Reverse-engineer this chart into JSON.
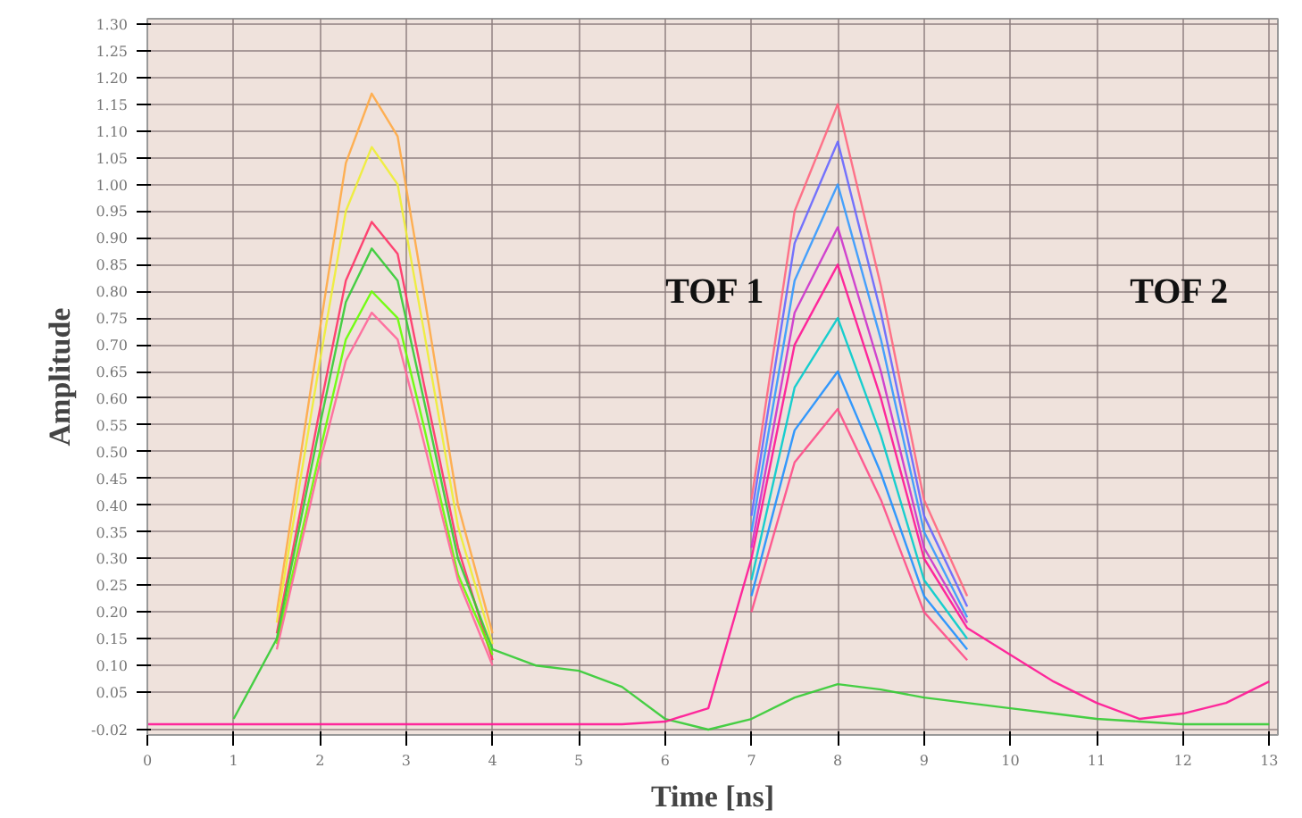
{
  "chart_data": {
    "type": "line",
    "xlabel": "Time [ns]",
    "ylabel": "Amplitude",
    "x": [
      0,
      0.5,
      1,
      1.5,
      2,
      2.3,
      2.6,
      2.9,
      3.2,
      3.6,
      4,
      4.5,
      5,
      5.5,
      6,
      6.5,
      7,
      7.5,
      8,
      8.5,
      9,
      9.5,
      10,
      10.5,
      11,
      11.5,
      12,
      12.5,
      13
    ],
    "series": [
      {
        "color": "#ffaa44",
        "values": [
          null,
          null,
          null,
          0.2,
          0.73,
          1.04,
          1.17,
          1.09,
          0.8,
          0.4,
          0.16,
          null,
          null,
          null,
          null,
          null,
          null,
          null,
          null,
          null,
          null,
          null,
          null,
          null,
          null,
          null,
          null,
          null,
          null
        ]
      },
      {
        "color": "#eeee33",
        "values": [
          null,
          null,
          null,
          0.18,
          0.67,
          0.95,
          1.07,
          1.0,
          0.73,
          0.36,
          0.14,
          null,
          null,
          null,
          null,
          null,
          null,
          null,
          null,
          null,
          null,
          null,
          null,
          null,
          null,
          null,
          null,
          null,
          null
        ]
      },
      {
        "color": "#ff3366",
        "values": [
          null,
          null,
          null,
          0.16,
          0.58,
          0.82,
          0.93,
          0.87,
          0.63,
          0.32,
          0.11,
          null,
          null,
          null,
          null,
          null,
          null,
          null,
          null,
          null,
          null,
          null,
          null,
          null,
          null,
          null,
          null,
          null,
          null
        ]
      },
      {
        "color": "#66ff00",
        "values": [
          null,
          null,
          null,
          0.14,
          0.5,
          0.71,
          0.8,
          0.75,
          0.55,
          0.27,
          0.12,
          null,
          null,
          null,
          null,
          null,
          null,
          null,
          null,
          null,
          null,
          null,
          null,
          null,
          null,
          null,
          null,
          null,
          null
        ]
      },
      {
        "color": "#ff6699",
        "values": [
          null,
          null,
          null,
          0.13,
          0.48,
          0.67,
          0.76,
          0.71,
          0.52,
          0.26,
          0.1,
          null,
          null,
          null,
          null,
          null,
          null,
          null,
          null,
          null,
          null,
          null,
          null,
          null,
          null,
          null,
          null,
          null,
          null
        ]
      },
      {
        "color": "#33cc33",
        "values": [
          null,
          null,
          0.0,
          0.15,
          0.55,
          0.78,
          0.88,
          0.82,
          0.6,
          0.3,
          0.13,
          0.1,
          0.09,
          0.06,
          0.0,
          -0.02,
          0.0,
          0.04,
          0.065,
          0.055,
          0.04,
          0.03,
          0.02,
          0.01,
          0.0,
          -0.005,
          -0.01,
          -0.01,
          -0.01
        ]
      },
      {
        "color": "#ff6680",
        "values": [
          null,
          null,
          null,
          null,
          null,
          null,
          null,
          null,
          null,
          null,
          null,
          null,
          null,
          null,
          null,
          null,
          0.41,
          0.95,
          1.15,
          0.81,
          0.41,
          0.23,
          null,
          null,
          null,
          null,
          null,
          null,
          null
        ]
      },
      {
        "color": "#6666ff",
        "values": [
          null,
          null,
          null,
          null,
          null,
          null,
          null,
          null,
          null,
          null,
          null,
          null,
          null,
          null,
          null,
          null,
          0.38,
          0.89,
          1.08,
          0.76,
          0.38,
          0.21,
          null,
          null,
          null,
          null,
          null,
          null,
          null
        ]
      },
      {
        "color": "#3399ff",
        "values": [
          null,
          null,
          null,
          null,
          null,
          null,
          null,
          null,
          null,
          null,
          null,
          null,
          null,
          null,
          null,
          null,
          0.35,
          0.82,
          1.0,
          0.71,
          0.35,
          0.19,
          null,
          null,
          null,
          null,
          null,
          null,
          null
        ]
      },
      {
        "color": "#cc33cc",
        "values": [
          null,
          null,
          null,
          null,
          null,
          null,
          null,
          null,
          null,
          null,
          null,
          null,
          null,
          null,
          null,
          null,
          0.32,
          0.76,
          0.92,
          0.65,
          0.32,
          0.18,
          null,
          null,
          null,
          null,
          null,
          null,
          null
        ]
      },
      {
        "color": "#00cccc",
        "values": [
          null,
          null,
          null,
          null,
          null,
          null,
          null,
          null,
          null,
          null,
          null,
          null,
          null,
          null,
          null,
          null,
          0.26,
          0.62,
          0.75,
          0.53,
          0.26,
          0.15,
          null,
          null,
          null,
          null,
          null,
          null,
          null
        ]
      },
      {
        "color": "#1e90ff",
        "values": [
          null,
          null,
          null,
          null,
          null,
          null,
          null,
          null,
          null,
          null,
          null,
          null,
          null,
          null,
          null,
          null,
          0.23,
          0.54,
          0.65,
          0.46,
          0.23,
          0.13,
          null,
          null,
          null,
          null,
          null,
          null,
          null
        ]
      },
      {
        "color": "#ff4d88",
        "values": [
          null,
          null,
          null,
          null,
          null,
          null,
          null,
          null,
          null,
          null,
          null,
          null,
          null,
          null,
          null,
          null,
          0.2,
          0.48,
          0.58,
          0.41,
          0.2,
          0.11,
          null,
          null,
          null,
          null,
          null,
          null,
          null
        ]
      },
      {
        "color": "#ff1493",
        "values": [
          -0.01,
          -0.01,
          -0.01,
          -0.01,
          -0.01,
          -0.01,
          -0.01,
          -0.01,
          -0.01,
          -0.01,
          -0.01,
          -0.01,
          -0.01,
          -0.01,
          -0.005,
          0.02,
          0.3,
          0.7,
          0.85,
          0.6,
          0.3,
          0.17,
          0.12,
          0.07,
          0.03,
          0.0,
          0.01,
          0.03,
          0.07
        ]
      }
    ],
    "annotations": [
      "TOF 1",
      "TOF 2"
    ],
    "xlim": [
      0,
      13.1
    ],
    "xticks": [
      0,
      1,
      2,
      3,
      4,
      5,
      6,
      7,
      8,
      9,
      10,
      11,
      12,
      13
    ],
    "ylim": [
      -0.03,
      1.31
    ],
    "yticks": [
      {
        "value": -0.02,
        "label": "-0.02"
      },
      {
        "value": 0.05,
        "label": "0.05"
      },
      {
        "value": 0.1,
        "label": "0.10"
      },
      {
        "value": 0.15,
        "label": "0.15"
      },
      {
        "value": 0.2,
        "label": "0.20"
      },
      {
        "value": 0.25,
        "label": "0.25"
      },
      {
        "value": 0.3,
        "label": "0.30"
      },
      {
        "value": 0.35,
        "label": "0.35"
      },
      {
        "value": 0.4,
        "label": "0.40"
      },
      {
        "value": 0.45,
        "label": "0.45"
      },
      {
        "value": 0.5,
        "label": "0.50"
      },
      {
        "value": 0.55,
        "label": "0.55"
      },
      {
        "value": 0.6,
        "label": "0.60"
      },
      {
        "value": 0.65,
        "label": "0.65"
      },
      {
        "value": 0.7,
        "label": "0.70"
      },
      {
        "value": 0.75,
        "label": "0.75"
      },
      {
        "value": 0.8,
        "label": "0.80"
      },
      {
        "value": 0.85,
        "label": "0.85"
      },
      {
        "value": 0.9,
        "label": "0.90"
      },
      {
        "value": 0.95,
        "label": "0.95"
      },
      {
        "value": 1.0,
        "label": "1.00"
      },
      {
        "value": 1.05,
        "label": "1.05"
      },
      {
        "value": 1.1,
        "label": "1.10"
      },
      {
        "value": 1.15,
        "label": "1.15"
      },
      {
        "value": 1.2,
        "label": "1.20"
      },
      {
        "value": 1.25,
        "label": "1.25"
      },
      {
        "value": 1.3,
        "label": "1.30"
      }
    ],
    "grid": true,
    "line_style": "solid"
  }
}
